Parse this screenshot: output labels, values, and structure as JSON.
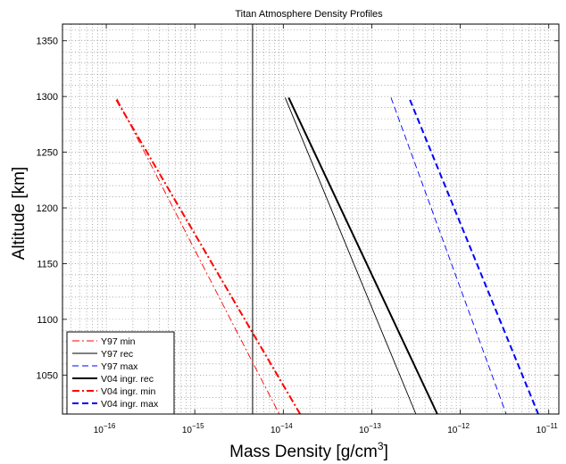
{
  "chart_data": {
    "type": "line",
    "title": "Titan Atmosphere Density Profiles",
    "xlabel": "Mass Density [g/cm",
    "xlabel_sup": "3",
    "xlabel_suffix": "]",
    "ylabel": "Altitude [km]",
    "x_scale": "log",
    "xlim": [
      3.2e-17,
      1.3e-11
    ],
    "ylim": [
      1015,
      1365
    ],
    "grid": true,
    "legend_position": "bottom-left",
    "x_ticks": [
      {
        "exp": -16,
        "base": "10",
        "sup": "−16"
      },
      {
        "exp": -15,
        "base": "10",
        "sup": "−15"
      },
      {
        "exp": -14,
        "base": "10",
        "sup": "−14"
      },
      {
        "exp": -13,
        "base": "10",
        "sup": "−13"
      },
      {
        "exp": -12,
        "base": "10",
        "sup": "−12"
      },
      {
        "exp": -11,
        "base": "10",
        "sup": "−11"
      }
    ],
    "y_ticks": [
      1050,
      1100,
      1150,
      1200,
      1250,
      1300,
      1350
    ],
    "vertical_line_x": 4.5e-15,
    "series": [
      {
        "name": "Y97 min",
        "color": "#ff0000",
        "style": "dashdot",
        "width": 0.9,
        "points": [
          [
            1.32e-16,
            1298
          ],
          [
            9e-15,
            1015
          ]
        ]
      },
      {
        "name": "Y97 rec",
        "color": "#000000",
        "style": "solid",
        "width": 0.9,
        "points": [
          [
            1.05e-14,
            1299
          ],
          [
            3.15e-13,
            1015
          ]
        ]
      },
      {
        "name": "Y97 max",
        "color": "#0000ff",
        "style": "dashed",
        "width": 0.9,
        "points": [
          [
            1.65e-13,
            1299
          ],
          [
            3.3e-12,
            1015
          ]
        ]
      },
      {
        "name": "V04 ingr. rec",
        "color": "#000000",
        "style": "solid",
        "width": 2.0,
        "points": [
          [
            1.15e-14,
            1299
          ],
          [
            5.5e-13,
            1015
          ]
        ]
      },
      {
        "name": "V04 ingr. min",
        "color": "#ff0000",
        "style": "dashdot",
        "width": 2.0,
        "points": [
          [
            1.3e-16,
            1297
          ],
          [
            1.55e-14,
            1015
          ]
        ]
      },
      {
        "name": "V04 ingr. max",
        "color": "#0000ff",
        "style": "dashed",
        "width": 2.0,
        "points": [
          [
            2.7e-13,
            1297
          ],
          [
            7.6e-12,
            1015
          ]
        ]
      }
    ]
  }
}
